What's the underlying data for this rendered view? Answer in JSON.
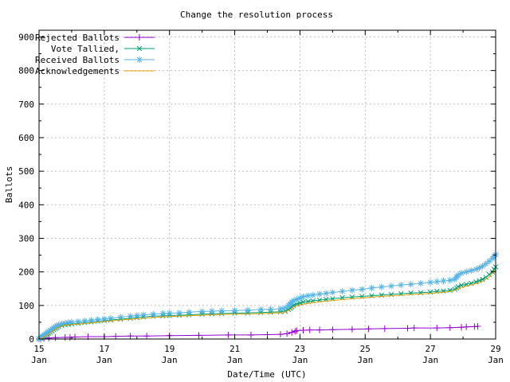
{
  "chart_data": {
    "type": "line",
    "title": "Change the resolution process",
    "xlabel": "Date/Time (UTC)",
    "ylabel": "Ballots",
    "xlim": [
      15,
      29
    ],
    "ylim": [
      0,
      920
    ],
    "grid": {
      "color": "#c0c0c0",
      "dash": "2,3",
      "x_days": [
        17,
        19,
        21,
        23,
        25,
        27
      ],
      "y_values": [
        100,
        200,
        300,
        400,
        500,
        600,
        700,
        800,
        900
      ]
    },
    "yticks": [
      0,
      100,
      200,
      300,
      400,
      500,
      600,
      700,
      800,
      900
    ],
    "yticks_minor": [
      50,
      150,
      250,
      350,
      450,
      550,
      650,
      750,
      850
    ],
    "xticks": [
      {
        "day": 15,
        "label": [
          "15",
          "Jan"
        ]
      },
      {
        "day": 17,
        "label": [
          "17",
          "Jan"
        ]
      },
      {
        "day": 19,
        "label": [
          "19",
          "Jan"
        ]
      },
      {
        "day": 21,
        "label": [
          "21",
          "Jan"
        ]
      },
      {
        "day": 23,
        "label": [
          "23",
          "Jan"
        ]
      },
      {
        "day": 25,
        "label": [
          "25",
          "Jan"
        ]
      },
      {
        "day": 27,
        "label": [
          "27",
          "Jan"
        ]
      },
      {
        "day": 29,
        "label": [
          "29",
          "Jan"
        ]
      }
    ],
    "xticks_minor": [
      16,
      18,
      20,
      22,
      24,
      26,
      28
    ],
    "legend_position": "top-left-inside",
    "series": [
      {
        "name": "Rejected Ballots",
        "color": "#9400d3",
        "marker": "plus",
        "points": [
          [
            15.0,
            0
          ],
          [
            15.05,
            1
          ],
          [
            15.15,
            2
          ],
          [
            15.3,
            3
          ],
          [
            15.5,
            4
          ],
          [
            15.8,
            5
          ],
          [
            15.95,
            5
          ],
          [
            16.1,
            6
          ],
          [
            16.5,
            7
          ],
          [
            17.0,
            7
          ],
          [
            17.35,
            8
          ],
          [
            17.8,
            9
          ],
          [
            18.3,
            9
          ],
          [
            19.0,
            10
          ],
          [
            19.9,
            11
          ],
          [
            20.8,
            12
          ],
          [
            21.5,
            12
          ],
          [
            22.0,
            13
          ],
          [
            22.4,
            14
          ],
          [
            22.6,
            16
          ],
          [
            22.75,
            20
          ],
          [
            22.85,
            23
          ],
          [
            22.9,
            25
          ],
          [
            23.1,
            26
          ],
          [
            23.3,
            27
          ],
          [
            23.6,
            27
          ],
          [
            24.0,
            28
          ],
          [
            24.6,
            29
          ],
          [
            25.1,
            30
          ],
          [
            25.6,
            31
          ],
          [
            26.3,
            32
          ],
          [
            26.5,
            33
          ],
          [
            27.2,
            33
          ],
          [
            27.6,
            34
          ],
          [
            27.95,
            35
          ],
          [
            28.1,
            36
          ],
          [
            28.35,
            37
          ],
          [
            28.45,
            38
          ]
        ]
      },
      {
        "name": "Vote Tallied,",
        "color": "#009e73",
        "marker": "cross",
        "points": [
          [
            15.0,
            0
          ],
          [
            15.05,
            2
          ],
          [
            15.1,
            5
          ],
          [
            15.15,
            8
          ],
          [
            15.2,
            11
          ],
          [
            15.25,
            14
          ],
          [
            15.3,
            17
          ],
          [
            15.35,
            20
          ],
          [
            15.4,
            24
          ],
          [
            15.45,
            28
          ],
          [
            15.5,
            31
          ],
          [
            15.55,
            34
          ],
          [
            15.6,
            37
          ],
          [
            15.7,
            40
          ],
          [
            15.8,
            43
          ],
          [
            15.9,
            44
          ],
          [
            16.0,
            45
          ],
          [
            16.2,
            47
          ],
          [
            16.4,
            49
          ],
          [
            16.6,
            51
          ],
          [
            16.8,
            53
          ],
          [
            17.0,
            55
          ],
          [
            17.2,
            57
          ],
          [
            17.5,
            59
          ],
          [
            17.8,
            62
          ],
          [
            18.0,
            64
          ],
          [
            18.2,
            66
          ],
          [
            18.5,
            68
          ],
          [
            18.8,
            69
          ],
          [
            19.0,
            70
          ],
          [
            19.3,
            71
          ],
          [
            19.6,
            72
          ],
          [
            20.0,
            74
          ],
          [
            20.3,
            75
          ],
          [
            20.6,
            76
          ],
          [
            21.0,
            77
          ],
          [
            21.4,
            78
          ],
          [
            21.8,
            79
          ],
          [
            22.1,
            80
          ],
          [
            22.4,
            81
          ],
          [
            22.55,
            83
          ],
          [
            22.65,
            88
          ],
          [
            22.7,
            92
          ],
          [
            22.75,
            96
          ],
          [
            22.8,
            100
          ],
          [
            22.9,
            104
          ],
          [
            23.0,
            107
          ],
          [
            23.1,
            110
          ],
          [
            23.25,
            112
          ],
          [
            23.4,
            114
          ],
          [
            23.6,
            116
          ],
          [
            23.8,
            118
          ],
          [
            24.0,
            120
          ],
          [
            24.3,
            123
          ],
          [
            24.6,
            125
          ],
          [
            24.9,
            127
          ],
          [
            25.2,
            129
          ],
          [
            25.5,
            131
          ],
          [
            25.8,
            133
          ],
          [
            26.1,
            135
          ],
          [
            26.4,
            137
          ],
          [
            26.7,
            138
          ],
          [
            27.0,
            140
          ],
          [
            27.2,
            142
          ],
          [
            27.4,
            143
          ],
          [
            27.6,
            145
          ],
          [
            27.75,
            148
          ],
          [
            27.8,
            152
          ],
          [
            27.85,
            156
          ],
          [
            27.95,
            160
          ],
          [
            28.1,
            163
          ],
          [
            28.25,
            166
          ],
          [
            28.4,
            170
          ],
          [
            28.5,
            174
          ],
          [
            28.6,
            178
          ],
          [
            28.7,
            184
          ],
          [
            28.8,
            192
          ],
          [
            28.9,
            200
          ],
          [
            28.95,
            208
          ],
          [
            29.0,
            215
          ]
        ]
      },
      {
        "name": "Received Ballots",
        "color": "#56b4e9",
        "marker": "asterisk",
        "points": [
          [
            15.0,
            1
          ],
          [
            15.05,
            4
          ],
          [
            15.1,
            8
          ],
          [
            15.15,
            12
          ],
          [
            15.2,
            16
          ],
          [
            15.25,
            20
          ],
          [
            15.3,
            23
          ],
          [
            15.35,
            26
          ],
          [
            15.4,
            30
          ],
          [
            15.45,
            34
          ],
          [
            15.5,
            37
          ],
          [
            15.55,
            40
          ],
          [
            15.6,
            42
          ],
          [
            15.7,
            45
          ],
          [
            15.8,
            47
          ],
          [
            15.9,
            49
          ],
          [
            16.0,
            50
          ],
          [
            16.2,
            52
          ],
          [
            16.4,
            54
          ],
          [
            16.6,
            56
          ],
          [
            16.8,
            58
          ],
          [
            17.0,
            60
          ],
          [
            17.2,
            62
          ],
          [
            17.5,
            65
          ],
          [
            17.8,
            68
          ],
          [
            18.0,
            70
          ],
          [
            18.2,
            72
          ],
          [
            18.5,
            74
          ],
          [
            18.8,
            76
          ],
          [
            19.0,
            77
          ],
          [
            19.3,
            78
          ],
          [
            19.6,
            80
          ],
          [
            20.0,
            82
          ],
          [
            20.3,
            83
          ],
          [
            20.6,
            84
          ],
          [
            21.0,
            85
          ],
          [
            21.4,
            86
          ],
          [
            21.8,
            88
          ],
          [
            22.1,
            89
          ],
          [
            22.4,
            90
          ],
          [
            22.55,
            93
          ],
          [
            22.65,
            100
          ],
          [
            22.7,
            105
          ],
          [
            22.75,
            110
          ],
          [
            22.8,
            114
          ],
          [
            22.9,
            118
          ],
          [
            23.0,
            122
          ],
          [
            23.1,
            126
          ],
          [
            23.25,
            129
          ],
          [
            23.4,
            131
          ],
          [
            23.6,
            134
          ],
          [
            23.8,
            136
          ],
          [
            24.0,
            139
          ],
          [
            24.3,
            142
          ],
          [
            24.6,
            145
          ],
          [
            24.9,
            148
          ],
          [
            25.2,
            152
          ],
          [
            25.5,
            155
          ],
          [
            25.8,
            158
          ],
          [
            26.1,
            161
          ],
          [
            26.4,
            163
          ],
          [
            26.7,
            166
          ],
          [
            27.0,
            169
          ],
          [
            27.2,
            171
          ],
          [
            27.4,
            173
          ],
          [
            27.6,
            175
          ],
          [
            27.75,
            178
          ],
          [
            27.8,
            185
          ],
          [
            27.85,
            190
          ],
          [
            27.95,
            196
          ],
          [
            28.1,
            200
          ],
          [
            28.25,
            204
          ],
          [
            28.4,
            208
          ],
          [
            28.5,
            212
          ],
          [
            28.6,
            217
          ],
          [
            28.7,
            224
          ],
          [
            28.8,
            232
          ],
          [
            28.9,
            240
          ],
          [
            28.95,
            246
          ],
          [
            29.0,
            252
          ]
        ]
      },
      {
        "name": "Acknowledgements",
        "color": "#e69f00",
        "marker": "none",
        "points": [
          [
            15.0,
            0
          ],
          [
            15.1,
            4
          ],
          [
            15.2,
            9
          ],
          [
            15.3,
            15
          ],
          [
            15.4,
            22
          ],
          [
            15.5,
            29
          ],
          [
            15.6,
            35
          ],
          [
            15.7,
            38
          ],
          [
            15.8,
            41
          ],
          [
            16.0,
            43
          ],
          [
            16.3,
            45
          ],
          [
            16.6,
            48
          ],
          [
            17.0,
            52
          ],
          [
            17.4,
            56
          ],
          [
            17.8,
            59
          ],
          [
            18.2,
            62
          ],
          [
            18.6,
            65
          ],
          [
            19.0,
            67
          ],
          [
            19.5,
            69
          ],
          [
            20.0,
            71
          ],
          [
            20.5,
            73
          ],
          [
            21.0,
            74
          ],
          [
            21.5,
            75
          ],
          [
            22.0,
            76
          ],
          [
            22.5,
            79
          ],
          [
            22.65,
            85
          ],
          [
            22.8,
            95
          ],
          [
            23.0,
            102
          ],
          [
            23.3,
            107
          ],
          [
            23.6,
            111
          ],
          [
            24.0,
            115
          ],
          [
            24.5,
            119
          ],
          [
            25.0,
            123
          ],
          [
            25.5,
            127
          ],
          [
            26.0,
            130
          ],
          [
            26.5,
            133
          ],
          [
            27.0,
            136
          ],
          [
            27.4,
            139
          ],
          [
            27.7,
            143
          ],
          [
            27.8,
            148
          ],
          [
            28.0,
            155
          ],
          [
            28.2,
            160
          ],
          [
            28.4,
            165
          ],
          [
            28.6,
            172
          ],
          [
            28.8,
            185
          ],
          [
            28.9,
            196
          ],
          [
            29.0,
            208
          ]
        ]
      }
    ]
  }
}
